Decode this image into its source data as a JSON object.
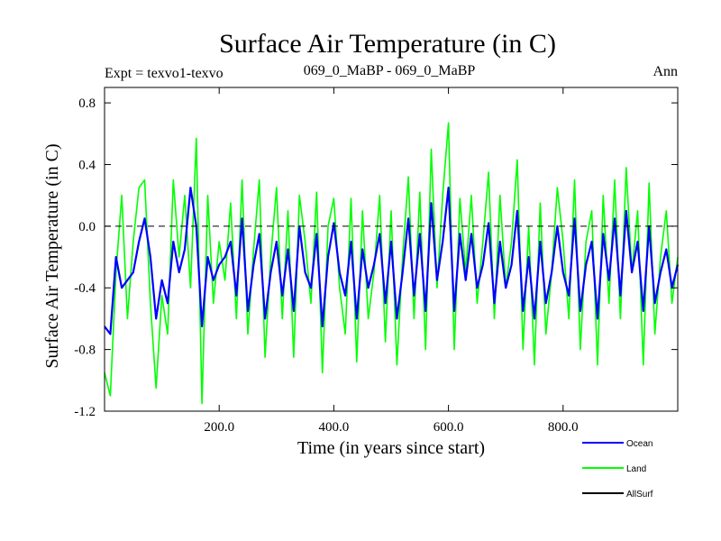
{
  "chart_data": {
    "type": "line",
    "title": "Surface Air Temperature (in C)",
    "subtitle_left": "Expt = texvo1-texvo",
    "subtitle_center": "069_0_MaBP - 069_0_MaBP",
    "subtitle_right": "Ann",
    "xlabel": "Time (in years since start)",
    "ylabel": "Surface Air Temperature (in C)",
    "xlim": [
      0,
      1000
    ],
    "ylim": [
      -1.2,
      0.9
    ],
    "xticks": [
      200,
      400,
      600,
      800
    ],
    "xtick_labels": [
      "200.0",
      "400.0",
      "600.0",
      "800.0"
    ],
    "yticks": [
      -1.2,
      -0.8,
      -0.4,
      0.0,
      0.4,
      0.8
    ],
    "ytick_labels": [
      "-1.2",
      "-0.8",
      "-0.4",
      "0.0",
      "0.4",
      "0.8"
    ],
    "reference_line": {
      "y": 0.0,
      "style": "dashed"
    },
    "series": [
      {
        "name": "Land",
        "color": "#00ff00",
        "x": [
          0,
          10,
          20,
          30,
          40,
          50,
          60,
          70,
          80,
          90,
          100,
          110,
          120,
          130,
          140,
          150,
          160,
          170,
          180,
          190,
          200,
          210,
          220,
          230,
          240,
          250,
          260,
          270,
          280,
          290,
          300,
          310,
          320,
          330,
          340,
          350,
          360,
          370,
          380,
          390,
          400,
          410,
          420,
          430,
          440,
          450,
          460,
          470,
          480,
          490,
          500,
          510,
          520,
          530,
          540,
          550,
          560,
          570,
          580,
          590,
          600,
          610,
          620,
          630,
          640,
          650,
          660,
          670,
          680,
          690,
          700,
          710,
          720,
          730,
          740,
          750,
          760,
          770,
          780,
          790,
          800,
          810,
          820,
          830,
          840,
          850,
          860,
          870,
          880,
          890,
          900,
          910,
          920,
          930,
          940,
          950,
          960,
          970,
          980,
          990,
          1000
        ],
        "values": [
          -0.95,
          -1.1,
          -0.3,
          0.2,
          -0.6,
          -0.1,
          0.25,
          0.3,
          -0.5,
          -1.05,
          -0.45,
          -0.7,
          0.3,
          -0.2,
          0.2,
          -0.4,
          0.57,
          -1.15,
          0.2,
          -0.5,
          -0.1,
          -0.35,
          0.15,
          -0.6,
          0.3,
          -0.7,
          -0.15,
          0.3,
          -0.85,
          -0.2,
          0.25,
          -0.6,
          0.1,
          -0.85,
          0.2,
          -0.1,
          -0.5,
          0.22,
          -0.95,
          0.0,
          0.18,
          -0.4,
          -0.7,
          0.18,
          -0.88,
          0.1,
          -0.6,
          -0.3,
          0.2,
          -0.75,
          0.1,
          -0.9,
          -0.2,
          0.32,
          -0.6,
          0.22,
          -0.8,
          0.5,
          -0.4,
          0.2,
          0.67,
          -0.8,
          0.18,
          -0.3,
          0.2,
          -0.5,
          -0.1,
          0.35,
          -0.6,
          0.2,
          -0.4,
          -0.1,
          0.43,
          -0.8,
          0.0,
          -0.9,
          0.15,
          -0.7,
          -0.3,
          0.25,
          -0.1,
          -0.6,
          0.3,
          -0.8,
          -0.1,
          0.1,
          -0.9,
          0.2,
          -0.5,
          0.3,
          -0.6,
          0.38,
          -0.3,
          0.1,
          -0.9,
          0.28,
          -0.7,
          -0.2,
          0.1,
          -0.5,
          -0.2
        ]
      },
      {
        "name": "Ocean",
        "color": "#0000ff",
        "x": [
          0,
          10,
          20,
          30,
          40,
          50,
          60,
          70,
          80,
          90,
          100,
          110,
          120,
          130,
          140,
          150,
          160,
          170,
          180,
          190,
          200,
          210,
          220,
          230,
          240,
          250,
          260,
          270,
          280,
          290,
          300,
          310,
          320,
          330,
          340,
          350,
          360,
          370,
          380,
          390,
          400,
          410,
          420,
          430,
          440,
          450,
          460,
          470,
          480,
          490,
          500,
          510,
          520,
          530,
          540,
          550,
          560,
          570,
          580,
          590,
          600,
          610,
          620,
          630,
          640,
          650,
          660,
          670,
          680,
          690,
          700,
          710,
          720,
          730,
          740,
          750,
          760,
          770,
          780,
          790,
          800,
          810,
          820,
          830,
          840,
          850,
          860,
          870,
          880,
          890,
          900,
          910,
          920,
          930,
          940,
          950,
          960,
          970,
          980,
          990,
          1000
        ],
        "values": [
          -0.65,
          -0.7,
          -0.2,
          -0.4,
          -0.35,
          -0.3,
          -0.1,
          0.05,
          -0.2,
          -0.6,
          -0.35,
          -0.5,
          -0.1,
          -0.3,
          -0.15,
          0.25,
          0.0,
          -0.65,
          -0.2,
          -0.35,
          -0.25,
          -0.2,
          -0.1,
          -0.45,
          0.05,
          -0.55,
          -0.25,
          -0.05,
          -0.6,
          -0.3,
          -0.1,
          -0.45,
          -0.15,
          -0.55,
          0.0,
          -0.3,
          -0.4,
          -0.05,
          -0.65,
          -0.2,
          0.02,
          -0.3,
          -0.45,
          -0.1,
          -0.6,
          -0.15,
          -0.4,
          -0.25,
          -0.05,
          -0.5,
          -0.1,
          -0.6,
          -0.3,
          0.05,
          -0.45,
          -0.05,
          -0.55,
          0.15,
          -0.35,
          -0.1,
          0.25,
          -0.55,
          -0.05,
          -0.35,
          -0.05,
          -0.4,
          -0.25,
          0.02,
          -0.5,
          -0.1,
          -0.4,
          -0.25,
          0.1,
          -0.55,
          -0.2,
          -0.6,
          -0.1,
          -0.5,
          -0.3,
          0.0,
          -0.3,
          -0.45,
          0.05,
          -0.55,
          -0.25,
          -0.1,
          -0.6,
          -0.05,
          -0.35,
          0.05,
          -0.45,
          0.1,
          -0.3,
          -0.1,
          -0.55,
          0.0,
          -0.5,
          -0.3,
          -0.15,
          -0.4,
          -0.25
        ]
      },
      {
        "name": "AllSurf",
        "color": "#000000",
        "x": [],
        "values": []
      }
    ],
    "legend": {
      "placement": "bottom-right",
      "entries": [
        {
          "name": "Ocean",
          "color": "#0000ff"
        },
        {
          "name": "Land",
          "color": "#00ff00"
        },
        {
          "name": "AllSurf",
          "color": "#000000"
        }
      ]
    }
  }
}
